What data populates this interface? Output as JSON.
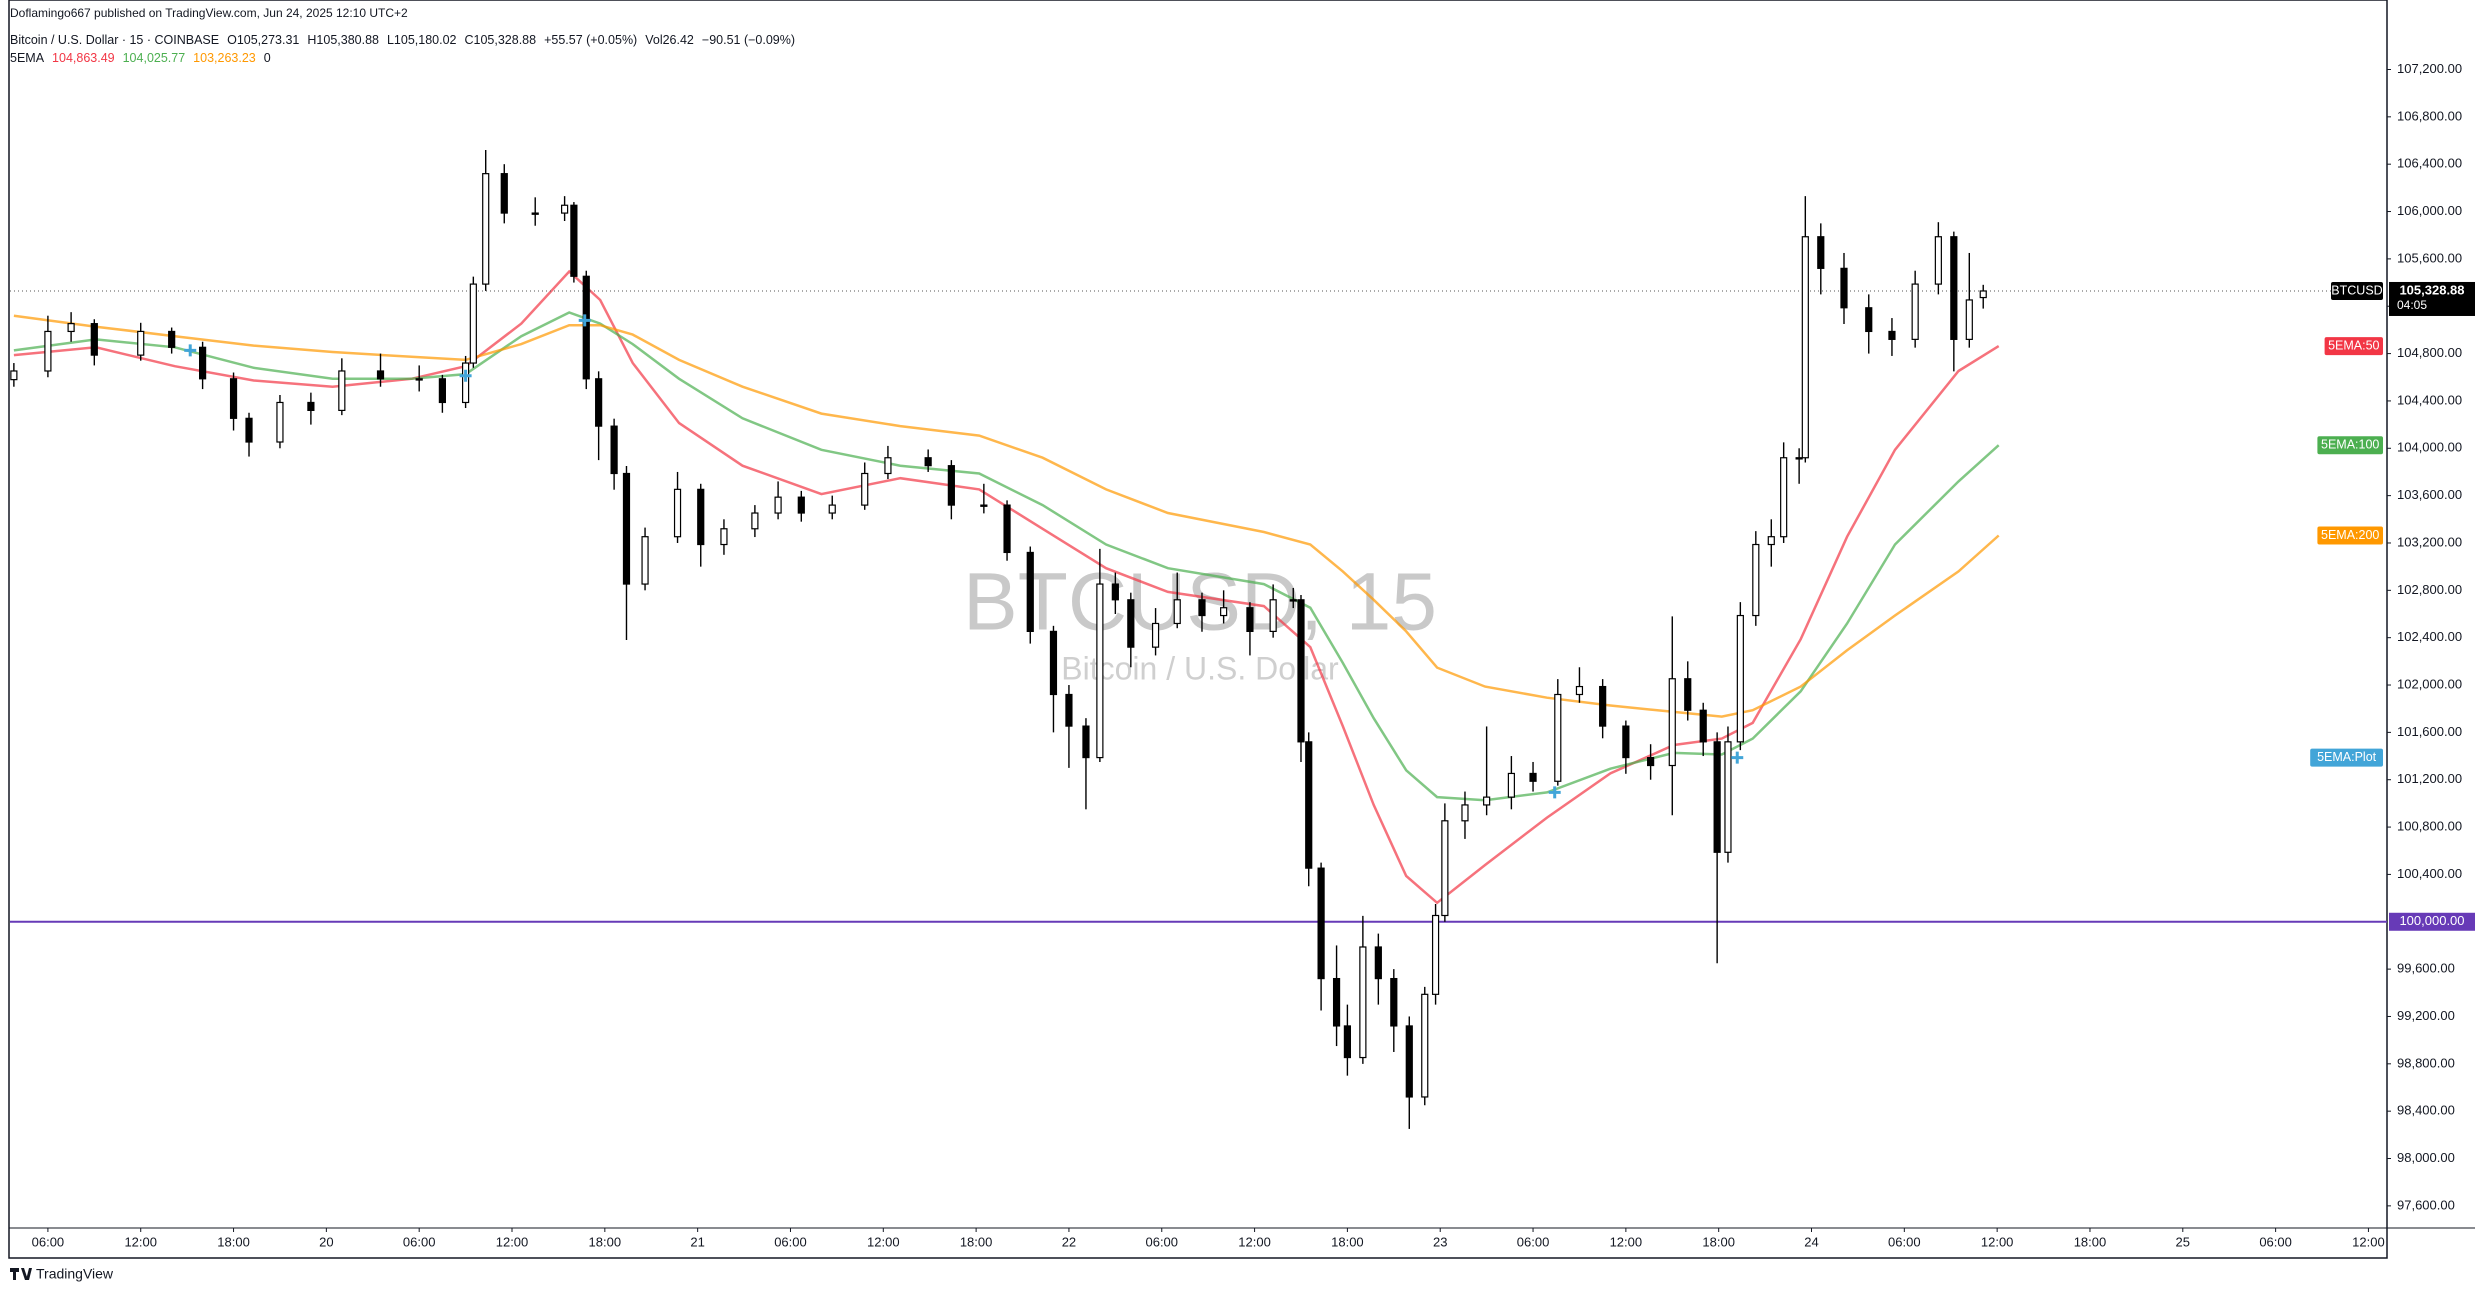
{
  "chart_data": {
    "type": "candlestick",
    "published": "Doflamingo667 published on TradingView.com, Jun 24, 2025 12:10 UTC+2",
    "title": "Bitcoin / U.S. Dollar · 15 · COINBASE",
    "ohlc_labels": [
      "O105,273.31",
      "H105,380.88",
      "L105,180.02",
      "C105,328.88"
    ],
    "change": "+55.57 (+0.05%)",
    "volume": "Vol26.42",
    "volume_change": "−90.51 (−0.09%)",
    "indicator": "5EMA",
    "indicator_extra": "0",
    "watermark": "BTCUSD, 15",
    "watermark_sub": "Bitcoin / U.S. Dollar",
    "brand": "TradingView",
    "up_color": "#ffffff",
    "down_color": "#000000",
    "wick_color": "#000000",
    "xlim": [
      3.55,
      157.2
    ],
    "ylim": [
      97413,
      107787
    ],
    "xticks": [
      {
        "value": 6,
        "label": "06:00"
      },
      {
        "value": 12,
        "label": "12:00"
      },
      {
        "value": 18,
        "label": "18:00"
      },
      {
        "value": 24,
        "label": "20"
      },
      {
        "value": 30,
        "label": "06:00"
      },
      {
        "value": 36,
        "label": "12:00"
      },
      {
        "value": 42,
        "label": "18:00"
      },
      {
        "value": 48,
        "label": "21"
      },
      {
        "value": 54,
        "label": "06:00"
      },
      {
        "value": 60,
        "label": "12:00"
      },
      {
        "value": 66,
        "label": "18:00"
      },
      {
        "value": 72,
        "label": "22"
      },
      {
        "value": 78,
        "label": "06:00"
      },
      {
        "value": 84,
        "label": "12:00"
      },
      {
        "value": 90,
        "label": "18:00"
      },
      {
        "value": 96,
        "label": "23"
      },
      {
        "value": 102,
        "label": "06:00"
      },
      {
        "value": 108,
        "label": "12:00"
      },
      {
        "value": 114,
        "label": "18:00"
      },
      {
        "value": 120,
        "label": "24"
      },
      {
        "value": 126,
        "label": "06:00"
      },
      {
        "value": 132,
        "label": "12:00"
      },
      {
        "value": 138,
        "label": "18:00"
      },
      {
        "value": 144,
        "label": "25"
      },
      {
        "value": 150,
        "label": "06:00"
      },
      {
        "value": 156,
        "label": "12:00"
      }
    ],
    "yticks": [
      {
        "value": 97600,
        "label": "97,600.00"
      },
      {
        "value": 98000,
        "label": "98,000.00"
      },
      {
        "value": 98400,
        "label": "98,400.00"
      },
      {
        "value": 98800,
        "label": "98,800.00"
      },
      {
        "value": 99200,
        "label": "99,200.00"
      },
      {
        "value": 99600,
        "label": "99,600.00"
      },
      {
        "value": 100400,
        "label": "100,400.00"
      },
      {
        "value": 100800,
        "label": "100,800.00"
      },
      {
        "value": 101200,
        "label": "101,200.00"
      },
      {
        "value": 101600,
        "label": "101,600.00"
      },
      {
        "value": 102000,
        "label": "102,000.00"
      },
      {
        "value": 102400,
        "label": "102,400.00"
      },
      {
        "value": 102800,
        "label": "102,800.00"
      },
      {
        "value": 103200,
        "label": "103,200.00"
      },
      {
        "value": 103600,
        "label": "103,600.00"
      },
      {
        "value": 104000,
        "label": "104,000.00"
      },
      {
        "value": 104400,
        "label": "104,400.00"
      },
      {
        "value": 104800,
        "label": "104,800.00"
      },
      {
        "value": 105200,
        "label": "105,200.00"
      },
      {
        "value": 105600,
        "label": "105,600.00"
      },
      {
        "value": 106000,
        "label": "106,000.00"
      },
      {
        "value": 106400,
        "label": "106,400.00"
      },
      {
        "value": 106800,
        "label": "106,800.00"
      },
      {
        "value": 107200,
        "label": "107,200.00"
      }
    ],
    "hline": {
      "value": 100000,
      "label": "100,000.00",
      "color": "#673ab7"
    },
    "last_price": {
      "symbol": "BTCUSD",
      "label": "105,328.88",
      "countdown": "04:05"
    },
    "candles": [
      [
        3.8,
        104580,
        104720,
        104520,
        104653
      ],
      [
        6,
        104653,
        105120,
        104600,
        104987
      ],
      [
        7.5,
        104987,
        105150,
        104900,
        105053
      ],
      [
        9,
        105053,
        105090,
        104700,
        104787
      ],
      [
        12,
        104787,
        105060,
        104740,
        104987
      ],
      [
        14,
        104987,
        105020,
        104800,
        104853
      ],
      [
        16,
        104853,
        104900,
        104500,
        104587
      ],
      [
        18,
        104587,
        104640,
        104150,
        104253
      ],
      [
        19,
        104253,
        104300,
        103930,
        104053
      ],
      [
        21,
        104053,
        104450,
        104000,
        104387
      ],
      [
        23,
        104387,
        104470,
        104200,
        104320
      ],
      [
        25,
        104320,
        104760,
        104280,
        104653
      ],
      [
        27.5,
        104653,
        104800,
        104520,
        104587
      ],
      [
        30,
        104587,
        104700,
        104480,
        104587
      ],
      [
        31.5,
        104587,
        104620,
        104300,
        104387
      ],
      [
        33,
        104387,
        104780,
        104340,
        104720
      ],
      [
        33.5,
        104720,
        105450,
        104680,
        105387
      ],
      [
        34.3,
        105387,
        106520,
        105330,
        106320
      ],
      [
        35.5,
        106320,
        106400,
        105900,
        105987
      ],
      [
        37.5,
        105987,
        106120,
        105880,
        105987
      ],
      [
        39.4,
        105987,
        106130,
        105920,
        106053
      ],
      [
        40,
        106053,
        106080,
        105400,
        105453
      ],
      [
        40.8,
        105453,
        105500,
        104500,
        104587
      ],
      [
        41.6,
        104587,
        104650,
        103900,
        104187
      ],
      [
        42.6,
        104187,
        104250,
        103650,
        103787
      ],
      [
        43.4,
        103787,
        103850,
        102380,
        102853
      ],
      [
        44.6,
        102853,
        103330,
        102800,
        103253
      ],
      [
        46.7,
        103253,
        103800,
        103200,
        103653
      ],
      [
        48.2,
        103653,
        103700,
        103000,
        103187
      ],
      [
        49.7,
        103187,
        103400,
        103100,
        103320
      ],
      [
        51.7,
        103320,
        103520,
        103250,
        103453
      ],
      [
        53.2,
        103453,
        103720,
        103400,
        103587
      ],
      [
        54.7,
        103587,
        103640,
        103380,
        103453
      ],
      [
        56.7,
        103453,
        103600,
        103400,
        103520
      ],
      [
        58.8,
        103520,
        103880,
        103480,
        103787
      ],
      [
        60.3,
        103787,
        104020,
        103740,
        103920
      ],
      [
        62.9,
        103920,
        103990,
        103800,
        103853
      ],
      [
        64.4,
        103853,
        103900,
        103400,
        103520
      ],
      [
        66.5,
        103520,
        103700,
        103450,
        103520
      ],
      [
        68,
        103520,
        103560,
        103050,
        103120
      ],
      [
        69.5,
        103120,
        103170,
        102350,
        102453
      ],
      [
        71,
        102453,
        102500,
        101600,
        101920
      ],
      [
        72,
        101920,
        102000,
        101300,
        101653
      ],
      [
        73.1,
        101653,
        101720,
        100950,
        101387
      ],
      [
        74,
        101387,
        103150,
        101350,
        102853
      ],
      [
        75,
        102853,
        102950,
        102600,
        102720
      ],
      [
        76,
        102720,
        102780,
        102150,
        102320
      ],
      [
        77.6,
        102320,
        102650,
        102250,
        102520
      ],
      [
        79,
        102520,
        102950,
        102480,
        102720
      ],
      [
        80.6,
        102720,
        102780,
        102450,
        102587
      ],
      [
        82,
        102587,
        102800,
        102520,
        102653
      ],
      [
        83.7,
        102653,
        102700,
        102250,
        102453
      ],
      [
        85.2,
        102453,
        102850,
        102400,
        102720
      ],
      [
        86.5,
        102720,
        102820,
        102650,
        102720
      ],
      [
        87,
        102720,
        102760,
        101350,
        101520
      ],
      [
        87.5,
        101520,
        101600,
        100300,
        100453
      ],
      [
        88.3,
        100453,
        100500,
        99250,
        99520
      ],
      [
        89.3,
        99520,
        99800,
        98950,
        99120
      ],
      [
        90,
        99120,
        99300,
        98700,
        98853
      ],
      [
        91,
        98853,
        100050,
        98800,
        99787
      ],
      [
        92,
        99787,
        99900,
        99300,
        99520
      ],
      [
        93,
        99520,
        99600,
        98900,
        99120
      ],
      [
        94,
        99120,
        99200,
        98250,
        98520
      ],
      [
        95,
        98520,
        99450,
        98450,
        99387
      ],
      [
        95.7,
        99387,
        100150,
        99300,
        100053
      ],
      [
        96.3,
        100053,
        101000,
        100000,
        100853
      ],
      [
        97.6,
        100853,
        101100,
        100700,
        100987
      ],
      [
        99,
        100987,
        101650,
        100900,
        101053
      ],
      [
        100.6,
        101053,
        101400,
        100950,
        101253
      ],
      [
        102,
        101253,
        101350,
        101100,
        101187
      ],
      [
        103.6,
        101187,
        102050,
        101150,
        101920
      ],
      [
        105,
        101920,
        102150,
        101850,
        101987
      ],
      [
        106.5,
        101987,
        102050,
        101550,
        101653
      ],
      [
        108,
        101653,
        101700,
        101250,
        101387
      ],
      [
        109.6,
        101387,
        101500,
        101200,
        101320
      ],
      [
        111,
        101320,
        102580,
        100900,
        102053
      ],
      [
        112,
        102053,
        102200,
        101700,
        101787
      ],
      [
        113,
        101787,
        101850,
        101400,
        101520
      ],
      [
        113.9,
        101520,
        101600,
        99650,
        100587
      ],
      [
        114.6,
        100587,
        101650,
        100500,
        101520
      ],
      [
        115.4,
        101520,
        102700,
        101450,
        102587
      ],
      [
        116.4,
        102587,
        103300,
        102500,
        103187
      ],
      [
        117.4,
        103187,
        103400,
        103000,
        103253
      ],
      [
        118.2,
        103253,
        104050,
        103200,
        103920
      ],
      [
        119.2,
        103920,
        104000,
        103700,
        103920
      ],
      [
        119.6,
        103920,
        106130,
        103880,
        105787
      ],
      [
        120.6,
        105787,
        105900,
        105300,
        105520
      ],
      [
        122.1,
        105520,
        105650,
        105050,
        105187
      ],
      [
        123.7,
        105187,
        105300,
        104800,
        104987
      ],
      [
        125.2,
        104987,
        105100,
        104780,
        104920
      ],
      [
        126.7,
        104920,
        105500,
        104850,
        105387
      ],
      [
        128.2,
        105387,
        105910,
        105300,
        105787
      ],
      [
        129.2,
        105787,
        105830,
        104650,
        104920
      ],
      [
        130.2,
        104920,
        105650,
        104850,
        105253
      ],
      [
        131.1,
        105273.31,
        105380.88,
        105180.02,
        105328.88
      ]
    ],
    "x": [
      3.8,
      9.1,
      14.2,
      19.3,
      24.4,
      29.5,
      33.0,
      36.6,
      39.7,
      41.7,
      43.8,
      46.8,
      50.9,
      56.0,
      61.1,
      66.2,
      70.3,
      74.4,
      78.4,
      84.6,
      87.6,
      89.7,
      91.7,
      93.8,
      95.8,
      98.9,
      102.9,
      107.0,
      111.1,
      114.2,
      116.2,
      119.3,
      122.3,
      125.4,
      129.5,
      132.1
    ],
    "series": [
      {
        "name": "5EMA:50",
        "color": "#f23645",
        "legend_value": "104,863.49",
        "values": [
          104787,
          104853,
          104693,
          104573,
          104520,
          104587,
          104693,
          105053,
          105493,
          105253,
          104720,
          104213,
          103853,
          103613,
          103747,
          103653,
          103320,
          102987,
          102787,
          102667,
          102320,
          101653,
          100987,
          100387,
          100160,
          100480,
          100880,
          101253,
          101493,
          101547,
          101680,
          102387,
          103253,
          103987,
          104653,
          104863.49
        ]
      },
      {
        "name": "5EMA:100",
        "color": "#4caf50",
        "legend_value": "104,025.77",
        "values": [
          104827,
          104920,
          104853,
          104680,
          104587,
          104587,
          104627,
          104947,
          105147,
          105053,
          104880,
          104587,
          104253,
          103987,
          103853,
          103787,
          103520,
          103187,
          102987,
          102853,
          102653,
          102187,
          101720,
          101280,
          101053,
          101027,
          101093,
          101293,
          101427,
          101413,
          101547,
          101947,
          102520,
          103187,
          103720,
          104025.77
        ]
      },
      {
        "name": "5EMA:200",
        "color": "#ff9800",
        "legend_value": "103,263.23",
        "values": [
          105120,
          105027,
          104947,
          104867,
          104813,
          104773,
          104747,
          104880,
          105040,
          105040,
          104960,
          104747,
          104520,
          104293,
          104187,
          104107,
          103920,
          103653,
          103453,
          103293,
          103187,
          102960,
          102720,
          102453,
          102147,
          101987,
          101893,
          101827,
          101773,
          101733,
          101787,
          101987,
          102293,
          102587,
          102960,
          103263.23
        ]
      }
    ],
    "markers": {
      "name": "5EMA:Plot",
      "color": "#42a5d8",
      "x": [
        15.2,
        33.0,
        40.7,
        103.4,
        115.2
      ],
      "values": [
        104827,
        104613,
        105080,
        101093,
        101387
      ]
    }
  }
}
